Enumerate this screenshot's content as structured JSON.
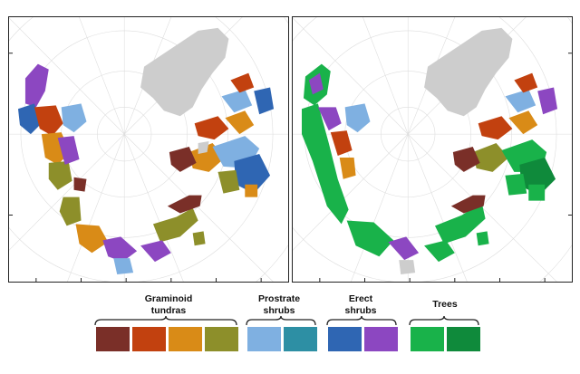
{
  "legend": {
    "groups": [
      {
        "label": "Graminoid\ntundras",
        "swatches": [
          "#7a2f28",
          "#c2410f",
          "#d98b17",
          "#8d8f2a"
        ]
      },
      {
        "label": "Prostrate\nshrubs",
        "swatches": [
          "#7fb0e1",
          "#2d8fa4"
        ]
      },
      {
        "label": "Erect\nshrubs",
        "swatches": [
          "#2f66b3",
          "#8c47c1"
        ]
      },
      {
        "label": "Trees",
        "swatches": [
          "#19b24a",
          "#0f8a3b"
        ]
      }
    ]
  },
  "colors": {
    "ice": "#cdcdcd",
    "graticule": "#dedede",
    "frame": "#222222"
  }
}
